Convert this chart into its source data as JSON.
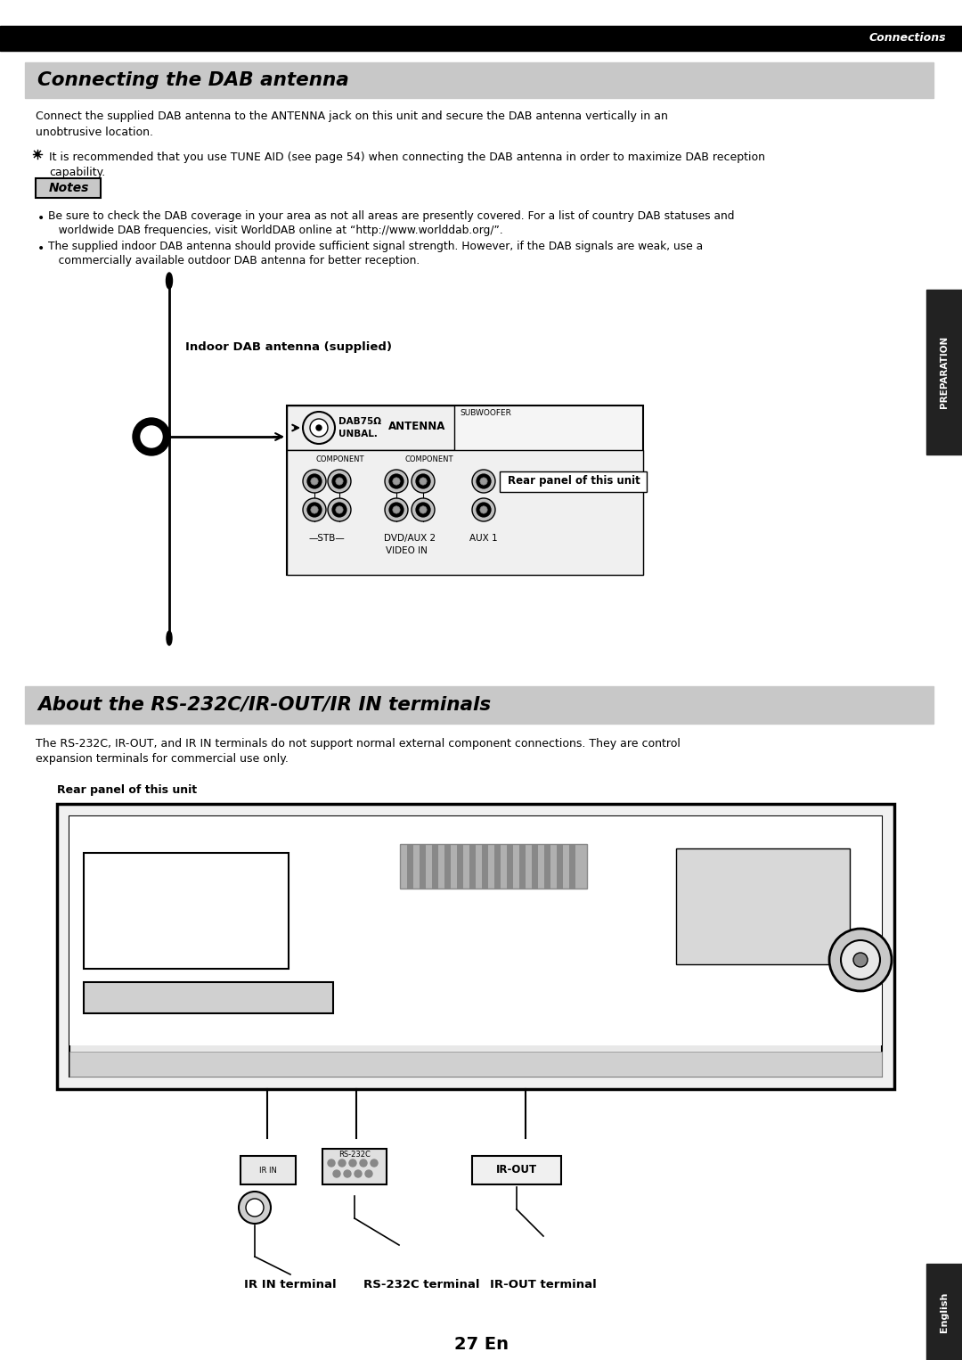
{
  "page_bg": "#ffffff",
  "top_bar_color": "#000000",
  "section_bg": "#c8c8c8",
  "side_tab_color": "#222222",
  "connections_text": "Connections",
  "title1": "Connecting the DAB antenna",
  "title2": "About the RS-232C/IR-OUT/IR IN terminals",
  "body1_l1": "Connect the supplied DAB antenna to the ANTENNA jack on this unit and secure the DAB antenna vertically in an",
  "body1_l2": "unobtrusive location.",
  "tip_l1": "It is recommended that you use TUNE AID (see page 54) when connecting the DAB antenna in order to maximize DAB reception",
  "tip_l2": "capability.",
  "notes_label": "Notes",
  "note1_l1": "Be sure to check the DAB coverage in your area as not all areas are presently covered. For a list of country DAB statuses and",
  "note1_l2": "   worldwide DAB frequencies, visit WorldDAB online at “http://www.worlddab.org/”.",
  "note2_l1": "The supplied indoor DAB antenna should provide sufficient signal strength. However, if the DAB signals are weak, use a",
  "note2_l2": "   commercially available outdoor DAB antenna for better reception.",
  "antenna_label": "Indoor DAB antenna (supplied)",
  "rear_panel1": "Rear panel of this unit",
  "body2_l1": "The RS-232C, IR-OUT, and IR IN terminals do not support normal external component connections. They are control",
  "body2_l2": "expansion terminals for commercial use only.",
  "rear_panel2": "Rear panel of this unit",
  "ir_in_label": "IR IN terminal",
  "rs232c_label": "RS-232C terminal",
  "ir_out_label": "IR-OUT terminal",
  "page_num": "27",
  "page_en": "En",
  "preparation_text": "PREPARATION",
  "english_text": "English",
  "dab_text1": "DAB75Ω",
  "dab_text2": "UNBAL.",
  "antenna_text": "ANTENNA",
  "subwoofer_text": "SUBWOOFER",
  "component_text1": "COMPONENT",
  "component_text2": "COMPONENT",
  "stb_text": "—STB—",
  "dvdaux2_text": "DVD/AUX 2",
  "aux1_text": "AUX 1",
  "videoin_text": "VIDEO IN",
  "ir_in_short": "IR IN",
  "rs232c_short": "RS-232C",
  "ir_out_short": "IR-OUT"
}
